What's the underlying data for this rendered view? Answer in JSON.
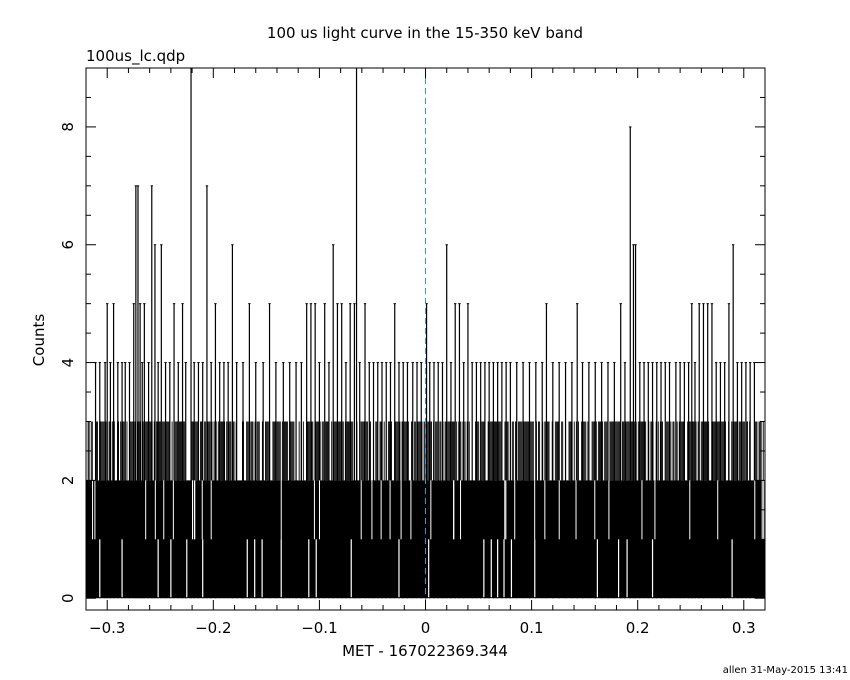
{
  "chart_data": {
    "type": "bar",
    "title": "100 us light curve in the 15-350 keV band",
    "subtitle": "100us_lc.qdp",
    "xlabel": "MET - 167022369.344",
    "ylabel": "Counts",
    "xlim": [
      -0.32,
      0.32
    ],
    "ylim": [
      -0.2,
      9.0
    ],
    "xticks": [
      -0.3,
      -0.2,
      -0.1,
      0,
      0.1,
      0.2,
      0.3
    ],
    "xtick_labels": [
      "−0.3",
      "−0.2",
      "−0.1",
      "0",
      "0.1",
      "0.2",
      "0.3"
    ],
    "yticks": [
      0,
      2,
      4,
      6,
      8
    ],
    "ytick_labels": [
      "0",
      "2",
      "4",
      "6",
      "8"
    ],
    "bin_width": 0.0001,
    "baseline_max": 2,
    "dense_band": [
      2,
      3
    ],
    "peaks": [
      {
        "x": -0.311,
        "y": 4
      },
      {
        "x": -0.307,
        "y": 4
      },
      {
        "x": -0.302,
        "y": 4
      },
      {
        "x": -0.3,
        "y": 5
      },
      {
        "x": -0.297,
        "y": 4
      },
      {
        "x": -0.294,
        "y": 5
      },
      {
        "x": -0.29,
        "y": 4
      },
      {
        "x": -0.286,
        "y": 4
      },
      {
        "x": -0.283,
        "y": 4
      },
      {
        "x": -0.279,
        "y": 4
      },
      {
        "x": -0.275,
        "y": 5
      },
      {
        "x": -0.273,
        "y": 7
      },
      {
        "x": -0.271,
        "y": 7
      },
      {
        "x": -0.269,
        "y": 5
      },
      {
        "x": -0.267,
        "y": 4
      },
      {
        "x": -0.265,
        "y": 5
      },
      {
        "x": -0.261,
        "y": 4
      },
      {
        "x": -0.258,
        "y": 7
      },
      {
        "x": -0.255,
        "y": 6
      },
      {
        "x": -0.252,
        "y": 4
      },
      {
        "x": -0.249,
        "y": 6
      },
      {
        "x": -0.245,
        "y": 4
      },
      {
        "x": -0.241,
        "y": 4
      },
      {
        "x": -0.237,
        "y": 5
      },
      {
        "x": -0.233,
        "y": 4
      },
      {
        "x": -0.229,
        "y": 5
      },
      {
        "x": -0.226,
        "y": 4
      },
      {
        "x": -0.221,
        "y": 9
      },
      {
        "x": -0.218,
        "y": 4
      },
      {
        "x": -0.214,
        "y": 4
      },
      {
        "x": -0.21,
        "y": 4
      },
      {
        "x": -0.206,
        "y": 7
      },
      {
        "x": -0.202,
        "y": 4
      },
      {
        "x": -0.198,
        "y": 5
      },
      {
        "x": -0.194,
        "y": 4
      },
      {
        "x": -0.19,
        "y": 4
      },
      {
        "x": -0.186,
        "y": 4
      },
      {
        "x": -0.182,
        "y": 6
      },
      {
        "x": -0.178,
        "y": 4
      },
      {
        "x": -0.172,
        "y": 4
      },
      {
        "x": -0.166,
        "y": 5
      },
      {
        "x": -0.16,
        "y": 4
      },
      {
        "x": -0.153,
        "y": 4
      },
      {
        "x": -0.147,
        "y": 5
      },
      {
        "x": -0.141,
        "y": 4
      },
      {
        "x": -0.134,
        "y": 4
      },
      {
        "x": -0.128,
        "y": 4
      },
      {
        "x": -0.122,
        "y": 4
      },
      {
        "x": -0.117,
        "y": 4
      },
      {
        "x": -0.112,
        "y": 5
      },
      {
        "x": -0.108,
        "y": 5
      },
      {
        "x": -0.104,
        "y": 5
      },
      {
        "x": -0.1,
        "y": 4
      },
      {
        "x": -0.095,
        "y": 5
      },
      {
        "x": -0.091,
        "y": 4
      },
      {
        "x": -0.087,
        "y": 6
      },
      {
        "x": -0.083,
        "y": 5
      },
      {
        "x": -0.079,
        "y": 5
      },
      {
        "x": -0.075,
        "y": 4
      },
      {
        "x": -0.071,
        "y": 5
      },
      {
        "x": -0.067,
        "y": 5
      },
      {
        "x": -0.065,
        "y": 9
      },
      {
        "x": -0.062,
        "y": 4
      },
      {
        "x": -0.057,
        "y": 5
      },
      {
        "x": -0.053,
        "y": 4
      },
      {
        "x": -0.049,
        "y": 4
      },
      {
        "x": -0.045,
        "y": 4
      },
      {
        "x": -0.041,
        "y": 4
      },
      {
        "x": -0.037,
        "y": 4
      },
      {
        "x": -0.033,
        "y": 4
      },
      {
        "x": -0.029,
        "y": 5
      },
      {
        "x": -0.025,
        "y": 4
      },
      {
        "x": -0.021,
        "y": 4
      },
      {
        "x": -0.017,
        "y": 4
      },
      {
        "x": -0.012,
        "y": 4
      },
      {
        "x": -0.008,
        "y": 4
      },
      {
        "x": -0.004,
        "y": 4
      },
      {
        "x": 0.001,
        "y": 5
      },
      {
        "x": 0.004,
        "y": 4
      },
      {
        "x": 0.008,
        "y": 4
      },
      {
        "x": 0.012,
        "y": 4
      },
      {
        "x": 0.016,
        "y": 4
      },
      {
        "x": 0.02,
        "y": 6
      },
      {
        "x": 0.024,
        "y": 4
      },
      {
        "x": 0.028,
        "y": 5
      },
      {
        "x": 0.032,
        "y": 5
      },
      {
        "x": 0.036,
        "y": 4
      },
      {
        "x": 0.04,
        "y": 5
      },
      {
        "x": 0.044,
        "y": 4
      },
      {
        "x": 0.048,
        "y": 4
      },
      {
        "x": 0.052,
        "y": 4
      },
      {
        "x": 0.056,
        "y": 4
      },
      {
        "x": 0.06,
        "y": 4
      },
      {
        "x": 0.064,
        "y": 4
      },
      {
        "x": 0.068,
        "y": 4
      },
      {
        "x": 0.072,
        "y": 4
      },
      {
        "x": 0.076,
        "y": 4
      },
      {
        "x": 0.08,
        "y": 4
      },
      {
        "x": 0.086,
        "y": 4
      },
      {
        "x": 0.092,
        "y": 4
      },
      {
        "x": 0.098,
        "y": 4
      },
      {
        "x": 0.104,
        "y": 4
      },
      {
        "x": 0.11,
        "y": 4
      },
      {
        "x": 0.114,
        "y": 5
      },
      {
        "x": 0.12,
        "y": 4
      },
      {
        "x": 0.126,
        "y": 4
      },
      {
        "x": 0.132,
        "y": 4
      },
      {
        "x": 0.138,
        "y": 4
      },
      {
        "x": 0.143,
        "y": 5
      },
      {
        "x": 0.148,
        "y": 4
      },
      {
        "x": 0.154,
        "y": 4
      },
      {
        "x": 0.16,
        "y": 4
      },
      {
        "x": 0.166,
        "y": 4
      },
      {
        "x": 0.172,
        "y": 4
      },
      {
        "x": 0.178,
        "y": 4
      },
      {
        "x": 0.184,
        "y": 5
      },
      {
        "x": 0.188,
        "y": 4
      },
      {
        "x": 0.193,
        "y": 8
      },
      {
        "x": 0.196,
        "y": 6
      },
      {
        "x": 0.198,
        "y": 6
      },
      {
        "x": 0.202,
        "y": 4
      },
      {
        "x": 0.206,
        "y": 4
      },
      {
        "x": 0.21,
        "y": 4
      },
      {
        "x": 0.214,
        "y": 4
      },
      {
        "x": 0.218,
        "y": 4
      },
      {
        "x": 0.222,
        "y": 4
      },
      {
        "x": 0.226,
        "y": 4
      },
      {
        "x": 0.23,
        "y": 4
      },
      {
        "x": 0.236,
        "y": 4
      },
      {
        "x": 0.24,
        "y": 4
      },
      {
        "x": 0.244,
        "y": 4
      },
      {
        "x": 0.248,
        "y": 4
      },
      {
        "x": 0.251,
        "y": 5
      },
      {
        "x": 0.254,
        "y": 4
      },
      {
        "x": 0.258,
        "y": 5
      },
      {
        "x": 0.262,
        "y": 5
      },
      {
        "x": 0.266,
        "y": 5
      },
      {
        "x": 0.27,
        "y": 5
      },
      {
        "x": 0.274,
        "y": 4
      },
      {
        "x": 0.278,
        "y": 4
      },
      {
        "x": 0.282,
        "y": 4
      },
      {
        "x": 0.286,
        "y": 5
      },
      {
        "x": 0.29,
        "y": 6
      },
      {
        "x": 0.294,
        "y": 4
      },
      {
        "x": 0.298,
        "y": 4
      },
      {
        "x": 0.302,
        "y": 4
      },
      {
        "x": 0.306,
        "y": 4
      },
      {
        "x": 0.31,
        "y": 4
      }
    ],
    "zeros": [
      -0.307,
      -0.286,
      -0.252,
      -0.24,
      -0.225,
      -0.21,
      -0.168,
      -0.161,
      -0.154,
      -0.136,
      -0.11,
      -0.103,
      -0.07,
      -0.025,
      0.003,
      0.055,
      0.062,
      0.068,
      0.074,
      0.081,
      0.103,
      0.162,
      0.182,
      0.19,
      0.214,
      0.289
    ],
    "dashed_line": {
      "x": 0,
      "color": "#3399cc"
    },
    "grid": false,
    "legend": "none"
  },
  "footer": {
    "stamp": "allen 31-May-2015 13:41"
  },
  "colors": {
    "background": "#ffffff",
    "bars": "#000000",
    "trigger_line": "#3399cc"
  }
}
